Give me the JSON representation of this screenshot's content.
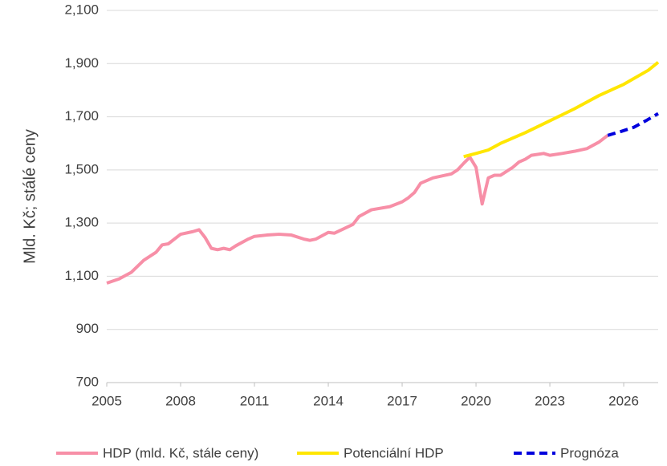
{
  "chart_data": {
    "type": "line",
    "y_label": "Mld. Kč; stálé ceny",
    "xlim": [
      2005,
      2027.4
    ],
    "xticks": [
      2005,
      2008,
      2011,
      2014,
      2017,
      2020,
      2023,
      2026
    ],
    "ylim": [
      700,
      2100
    ],
    "yticks": [
      {
        "value": 700,
        "label": "700"
      },
      {
        "value": 900,
        "label": "900"
      },
      {
        "value": 1100,
        "label": "1,100"
      },
      {
        "value": 1300,
        "label": "1,300"
      },
      {
        "value": 1500,
        "label": "1,500"
      },
      {
        "value": 1700,
        "label": "1,700"
      },
      {
        "value": 1900,
        "label": "1,900"
      },
      {
        "value": 2100,
        "label": "2,100"
      }
    ],
    "grid": true,
    "legend": "bottom",
    "series": [
      {
        "name": "HDP (mld. Kč, stále ceny)",
        "color": "#f78fa7",
        "dash": false,
        "x": [
          2005,
          2005.5,
          2006,
          2006.5,
          2007,
          2007.25,
          2007.5,
          2008,
          2008.5,
          2008.75,
          2009,
          2009.25,
          2009.5,
          2009.75,
          2010,
          2010.25,
          2010.75,
          2011,
          2011.5,
          2012,
          2012.5,
          2013,
          2013.25,
          2013.5,
          2014,
          2014.25,
          2015,
          2015.25,
          2015.75,
          2016.5,
          2017,
          2017.25,
          2017.5,
          2017.75,
          2018.25,
          2019,
          2019.25,
          2019.5,
          2019.75,
          2020,
          2020.25,
          2020.5,
          2020.75,
          2021,
          2021.5,
          2021.75,
          2022,
          2022.25,
          2022.75,
          2023,
          2023.5,
          2024,
          2024.5,
          2025,
          2025.35
        ],
        "values": [
          1074,
          1090,
          1115,
          1160,
          1190,
          1218,
          1222,
          1258,
          1268,
          1275,
          1245,
          1205,
          1200,
          1205,
          1200,
          1215,
          1240,
          1250,
          1255,
          1258,
          1255,
          1240,
          1235,
          1240,
          1265,
          1262,
          1295,
          1325,
          1350,
          1362,
          1380,
          1395,
          1415,
          1450,
          1470,
          1485,
          1500,
          1525,
          1548,
          1510,
          1372,
          1470,
          1480,
          1480,
          1510,
          1530,
          1540,
          1555,
          1562,
          1555,
          1562,
          1570,
          1580,
          1605,
          1630
        ]
      },
      {
        "name": "Potenciální HDP",
        "color": "#ffe600",
        "dash": false,
        "x": [
          2019.5,
          2020,
          2020.5,
          2021,
          2022,
          2023,
          2024,
          2025,
          2026,
          2027,
          2027.4
        ],
        "values": [
          1550,
          1562,
          1575,
          1600,
          1640,
          1685,
          1730,
          1780,
          1822,
          1875,
          1905
        ]
      },
      {
        "name": "Prognóza",
        "color": "#0000dd",
        "dash": true,
        "x": [
          2025.35,
          2025.9,
          2026.4,
          2026.9,
          2027.4
        ],
        "values": [
          1630,
          1645,
          1660,
          1685,
          1712
        ]
      }
    ]
  }
}
